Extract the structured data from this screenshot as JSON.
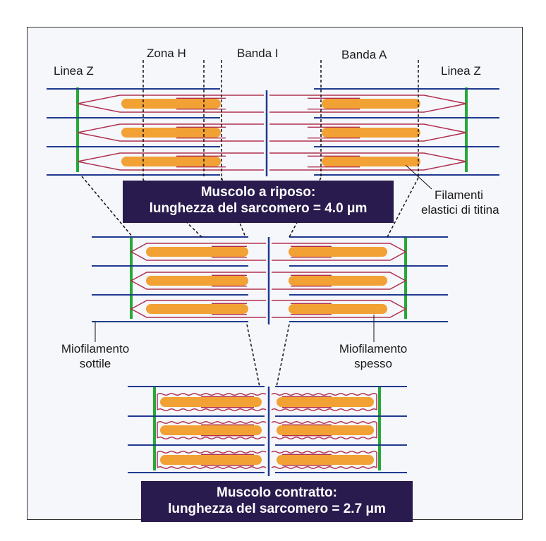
{
  "labels": {
    "zona_h": "Zona H",
    "banda_i": "Banda I",
    "banda_a": "Banda A",
    "linea_z_left": "Linea Z",
    "linea_z_right": "Linea Z",
    "titin_line1": "Filamenti",
    "titin_line2": "elastici di titina",
    "thin_line1": "Miofilamento",
    "thin_line2": "sottile",
    "thick_line1": "Miofilamento",
    "thick_line2": "spesso"
  },
  "states": {
    "resting": {
      "line1": "Muscolo a riposo:",
      "line2": "lunghezza del sarcomero = 4.0 μm"
    },
    "contracted": {
      "line1": "Muscolo contratto:",
      "line2": "lunghezza del sarcomero = 2.7 μm"
    }
  },
  "colors": {
    "actin": "#1f3a8f",
    "z_line": "#27a83a",
    "myosin": "#f2a134",
    "titin": "#b03050",
    "label_box": "#2a1b4e",
    "leader": "#111111"
  }
}
